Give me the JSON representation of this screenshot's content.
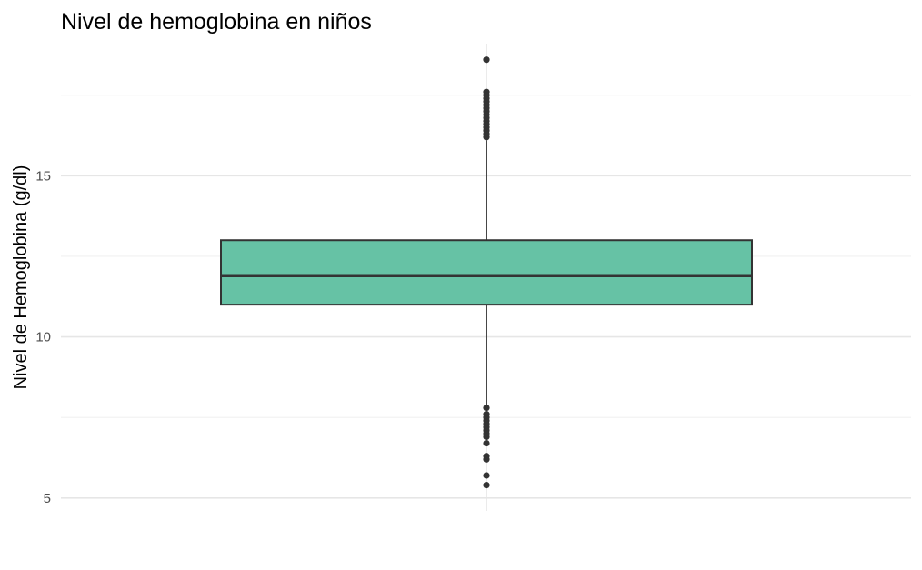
{
  "chart_data": {
    "type": "boxplot",
    "title": "Nivel de hemoglobina en niños",
    "xlabel": "",
    "ylabel": "Nivel de Hemoglobina (g/dl)",
    "ylim": [
      4.6,
      19.1
    ],
    "y_ticks": [
      5,
      10,
      15
    ],
    "y_tick_labels": [
      "5",
      "10",
      "15"
    ],
    "y_minor_ticks": [
      7.5,
      12.5,
      17.5
    ],
    "grid": true,
    "legend": "none",
    "fill_color": "#66c2a5",
    "outline_color": "#333333",
    "box": {
      "q1": 11.0,
      "median": 11.9,
      "q3": 13.0,
      "whisker_low": 7.9,
      "whisker_high": 16.1
    },
    "outliers": [
      18.6,
      17.6,
      17.5,
      17.4,
      17.3,
      17.2,
      17.1,
      17.0,
      16.9,
      16.8,
      16.7,
      16.6,
      16.5,
      16.4,
      16.3,
      16.2,
      7.8,
      7.6,
      7.5,
      7.4,
      7.3,
      7.2,
      7.1,
      7.0,
      6.9,
      6.7,
      6.3,
      6.2,
      5.7,
      5.4
    ]
  }
}
